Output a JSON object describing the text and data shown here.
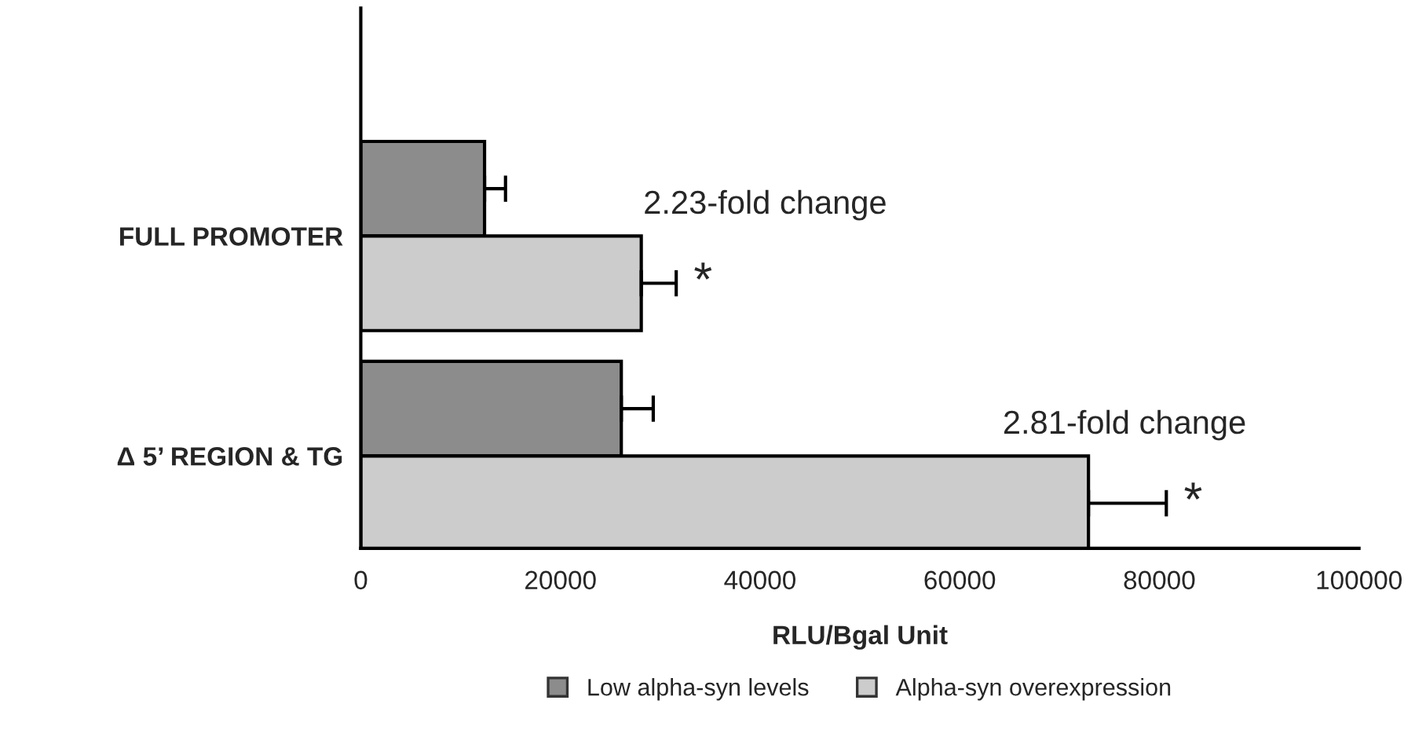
{
  "chart_data": {
    "type": "bar",
    "orientation": "horizontal",
    "categories": [
      "FULL PROMOTER",
      "Δ 5’ REGION & TG"
    ],
    "series": [
      {
        "name": "Low alpha-syn levels",
        "color": "#8c8c8c",
        "values": [
          12400,
          26100
        ],
        "errors": [
          [
            12400,
            14500
          ],
          [
            26100,
            29300
          ]
        ]
      },
      {
        "name": "Alpha-syn overexpression",
        "color": "#cccccc",
        "values": [
          28100,
          72900
        ],
        "errors": [
          [
            28100,
            31600
          ],
          [
            72900,
            80700
          ]
        ],
        "value_labels": [
          "*",
          "*"
        ]
      }
    ],
    "xlabel": "RLU/Bgal Unit",
    "xlim": [
      0,
      100000
    ],
    "xticks": [
      0,
      20000,
      40000,
      60000,
      80000,
      100000
    ],
    "annotations": [
      {
        "text": "2.23-fold change",
        "x": 28300,
        "y": "FULL PROMOTER"
      },
      {
        "text": "2.81-fold change",
        "x": 64300,
        "y": "Δ 5’ REGION & TG"
      }
    ],
    "legend": "bottom",
    "grid": false
  }
}
